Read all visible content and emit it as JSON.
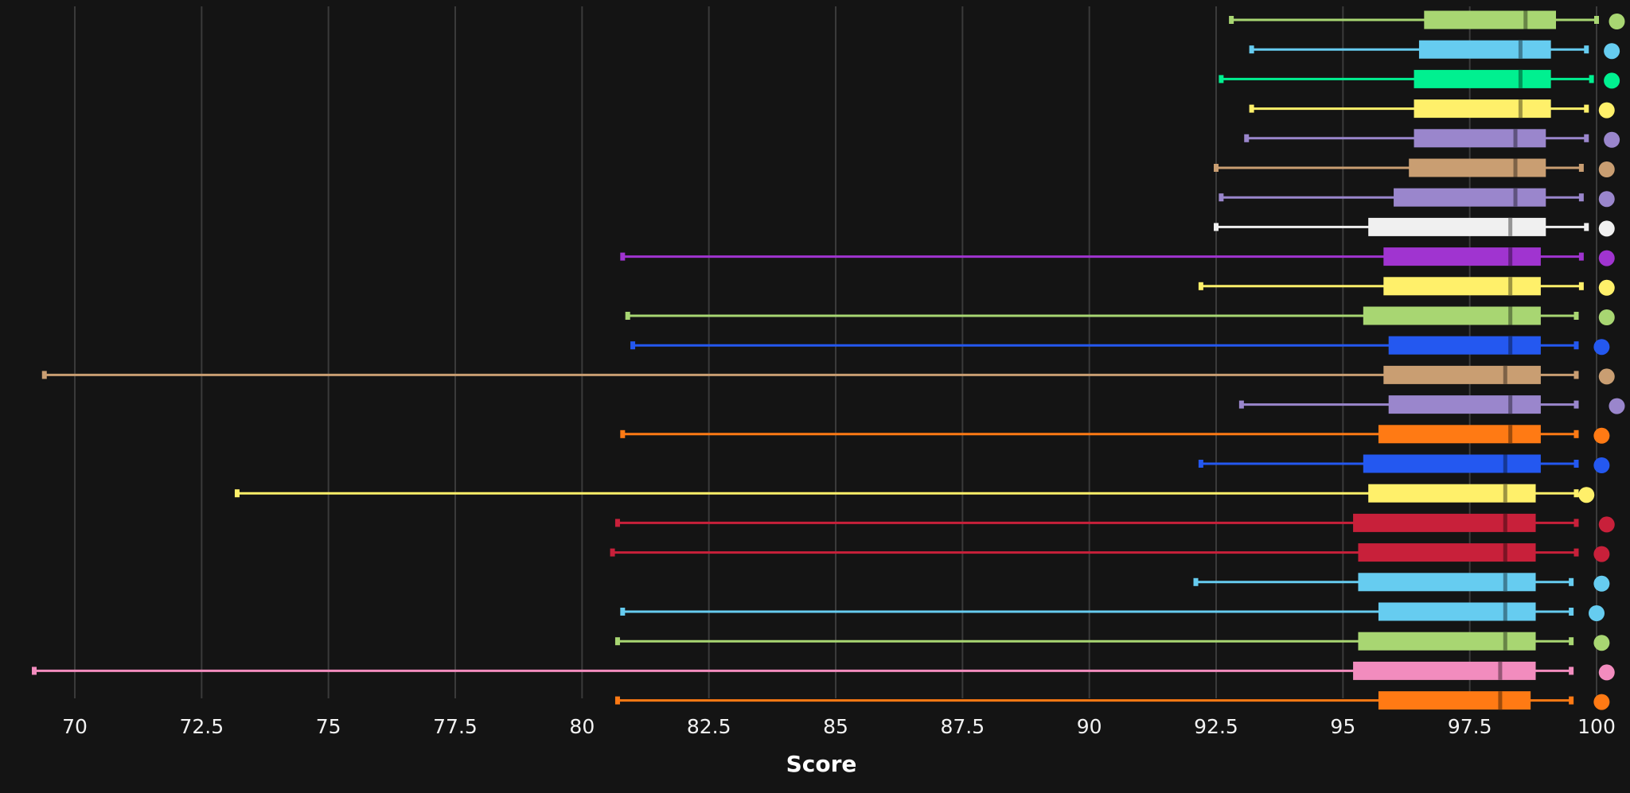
{
  "chart_data": {
    "type": "box",
    "orientation": "horizontal",
    "xlabel": "Score",
    "xlim": [
      69.3,
      100.6
    ],
    "xticks": [
      70,
      72.5,
      75,
      77.5,
      80,
      82.5,
      85,
      87.5,
      90,
      92.5,
      95,
      97.5,
      100
    ],
    "xtick_labels": [
      "70",
      "72.5",
      "75",
      "77.5",
      "80",
      "82.5",
      "85",
      "87.5",
      "90",
      "92.5",
      "95",
      "97.5",
      "100"
    ],
    "grid": "vertical",
    "series": [
      {
        "min": 92.8,
        "q1": 96.6,
        "median": 98.6,
        "q3": 99.2,
        "max": 100.0,
        "outlier": 100.4,
        "color": "#a8d672"
      },
      {
        "min": 93.2,
        "q1": 96.5,
        "median": 98.5,
        "q3": 99.1,
        "max": 99.8,
        "outlier": 100.3,
        "color": "#66ccf0"
      },
      {
        "min": 92.6,
        "q1": 96.4,
        "median": 98.5,
        "q3": 99.1,
        "max": 99.9,
        "outlier": 100.3,
        "color": "#00f090"
      },
      {
        "min": 93.2,
        "q1": 96.4,
        "median": 98.5,
        "q3": 99.1,
        "max": 99.8,
        "outlier": 100.2,
        "color": "#fff06a"
      },
      {
        "min": 93.1,
        "q1": 96.4,
        "median": 98.4,
        "q3": 99.0,
        "max": 99.8,
        "outlier": 100.3,
        "color": "#9a86cc"
      },
      {
        "min": 92.5,
        "q1": 96.3,
        "median": 98.4,
        "q3": 99.0,
        "max": 99.7,
        "outlier": 100.2,
        "color": "#c99e72"
      },
      {
        "min": 92.6,
        "q1": 96.0,
        "median": 98.4,
        "q3": 99.0,
        "max": 99.7,
        "outlier": 100.2,
        "color": "#9a86cc"
      },
      {
        "min": 92.5,
        "q1": 95.5,
        "median": 98.3,
        "q3": 99.0,
        "max": 99.8,
        "outlier": 100.2,
        "color": "#f0f0f0"
      },
      {
        "min": 80.8,
        "q1": 95.8,
        "median": 98.3,
        "q3": 98.9,
        "max": 99.7,
        "outlier": 100.2,
        "color": "#a034d0"
      },
      {
        "min": 92.2,
        "q1": 95.8,
        "median": 98.3,
        "q3": 98.9,
        "max": 99.7,
        "outlier": 100.2,
        "color": "#fff06a"
      },
      {
        "min": 80.9,
        "q1": 95.4,
        "median": 98.3,
        "q3": 98.9,
        "max": 99.6,
        "outlier": 100.2,
        "color": "#a8d672"
      },
      {
        "min": 81.0,
        "q1": 95.9,
        "median": 98.3,
        "q3": 98.9,
        "max": 99.6,
        "outlier": 100.1,
        "color": "#2458f0"
      },
      {
        "min": 69.4,
        "q1": 95.8,
        "median": 98.2,
        "q3": 98.9,
        "max": 99.6,
        "outlier": 100.2,
        "color": "#c99e72"
      },
      {
        "min": 93.0,
        "q1": 95.9,
        "median": 98.3,
        "q3": 98.9,
        "max": 99.6,
        "outlier": 100.4,
        "color": "#9a86cc"
      },
      {
        "min": 80.8,
        "q1": 95.7,
        "median": 98.3,
        "q3": 98.9,
        "max": 99.6,
        "outlier": 100.1,
        "color": "#ff7a14"
      },
      {
        "min": 92.2,
        "q1": 95.4,
        "median": 98.2,
        "q3": 98.9,
        "max": 99.6,
        "outlier": 100.1,
        "color": "#2458f0"
      },
      {
        "min": 73.2,
        "q1": 95.5,
        "median": 98.2,
        "q3": 98.8,
        "max": 99.6,
        "outlier": 99.8,
        "color": "#fff06a"
      },
      {
        "min": 80.7,
        "q1": 95.2,
        "median": 98.2,
        "q3": 98.8,
        "max": 99.6,
        "outlier": 100.2,
        "color": "#c8203a"
      },
      {
        "min": 80.6,
        "q1": 95.3,
        "median": 98.2,
        "q3": 98.8,
        "max": 99.6,
        "outlier": 100.1,
        "color": "#c8203a"
      },
      {
        "min": 92.1,
        "q1": 95.3,
        "median": 98.2,
        "q3": 98.8,
        "max": 99.5,
        "outlier": 100.1,
        "color": "#66ccf0"
      },
      {
        "min": 80.8,
        "q1": 95.7,
        "median": 98.2,
        "q3": 98.8,
        "max": 99.5,
        "outlier": 100.0,
        "color": "#66ccf0"
      },
      {
        "min": 80.7,
        "q1": 95.3,
        "median": 98.2,
        "q3": 98.8,
        "max": 99.5,
        "outlier": 100.1,
        "color": "#a8d672"
      },
      {
        "min": 69.2,
        "q1": 95.2,
        "median": 98.1,
        "q3": 98.8,
        "max": 99.5,
        "outlier": 100.2,
        "color": "#f28cbe"
      },
      {
        "min": 80.7,
        "q1": 95.7,
        "median": 98.1,
        "q3": 98.7,
        "max": 99.5,
        "outlier": 100.1,
        "color": "#ff7a14"
      }
    ]
  }
}
